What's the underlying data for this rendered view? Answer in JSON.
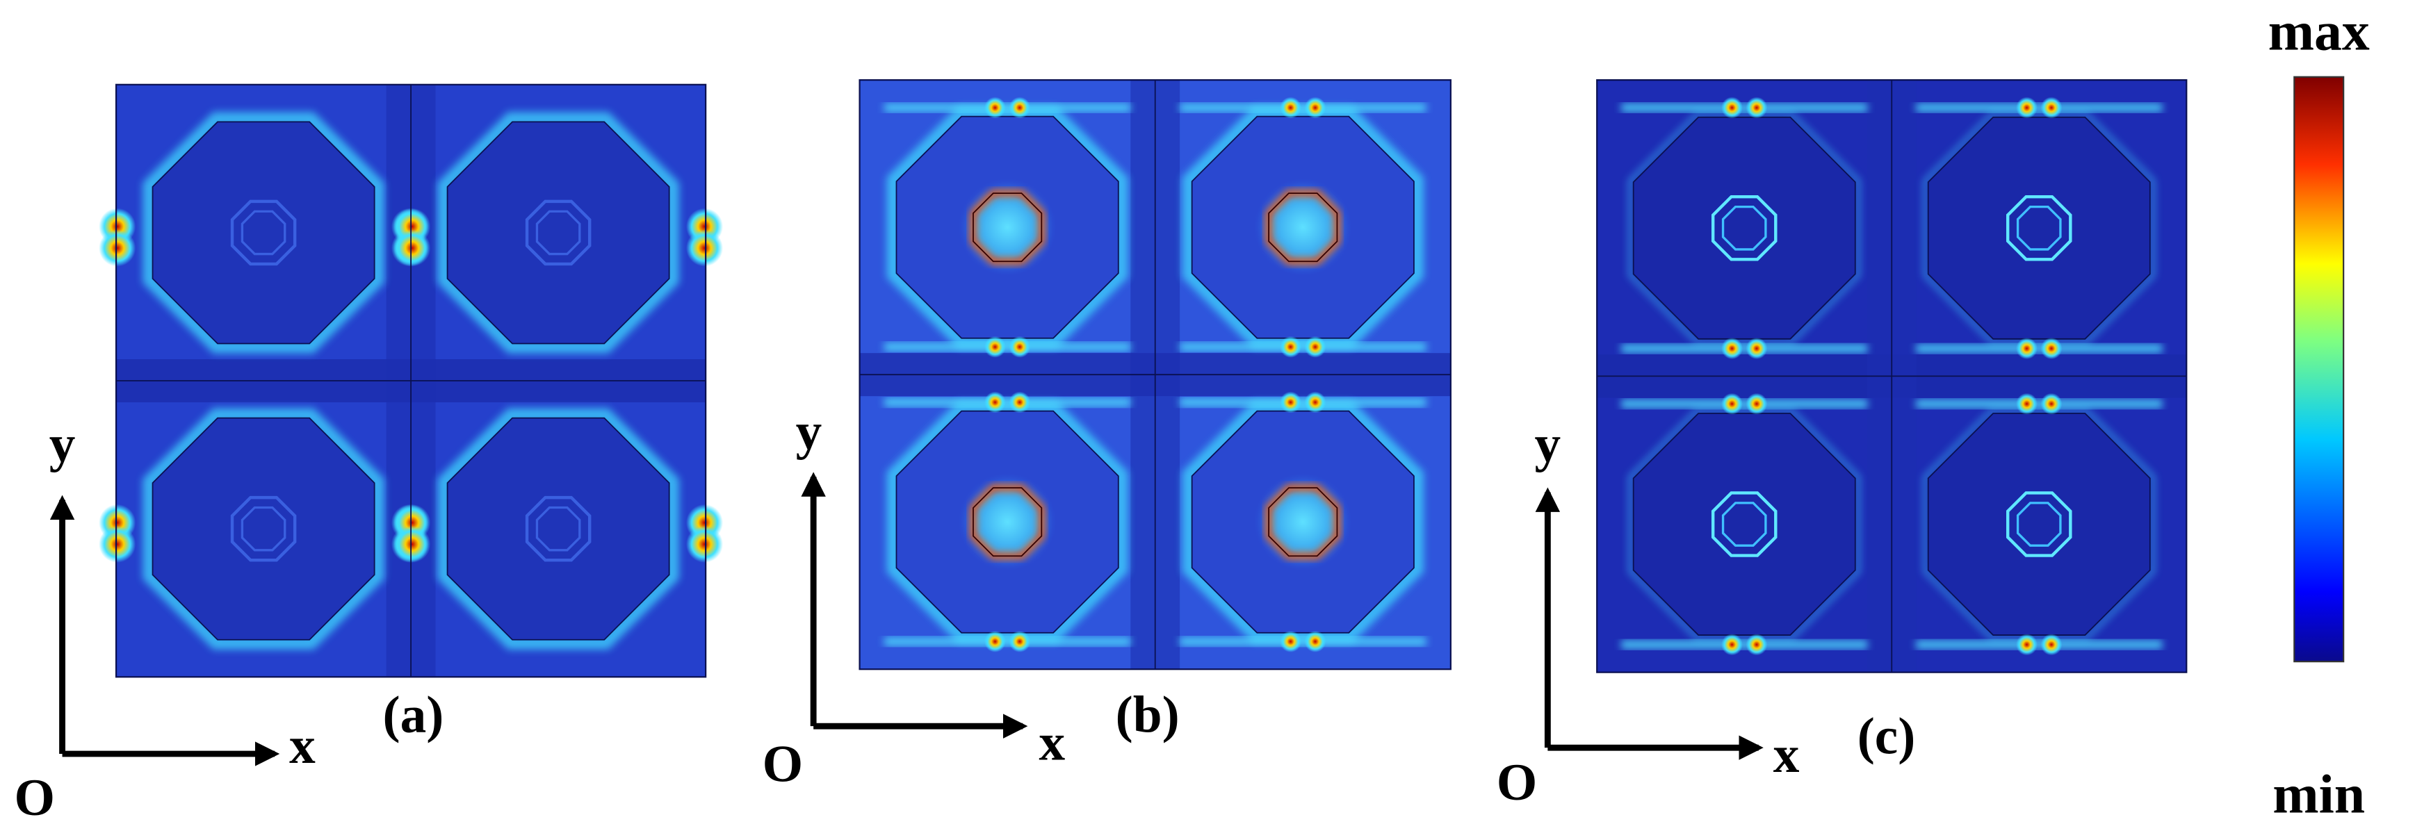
{
  "panels": [
    {
      "label": "(a)",
      "axes": {
        "y": "y",
        "x": "x",
        "origin": "O"
      }
    },
    {
      "label": "(b)",
      "axes": {
        "y": "y",
        "x": "x",
        "origin": "O"
      }
    },
    {
      "label": "(c)",
      "axes": {
        "y": "y",
        "x": "x",
        "origin": "O"
      }
    }
  ],
  "colorbar": {
    "max": "max",
    "min": "min"
  }
}
